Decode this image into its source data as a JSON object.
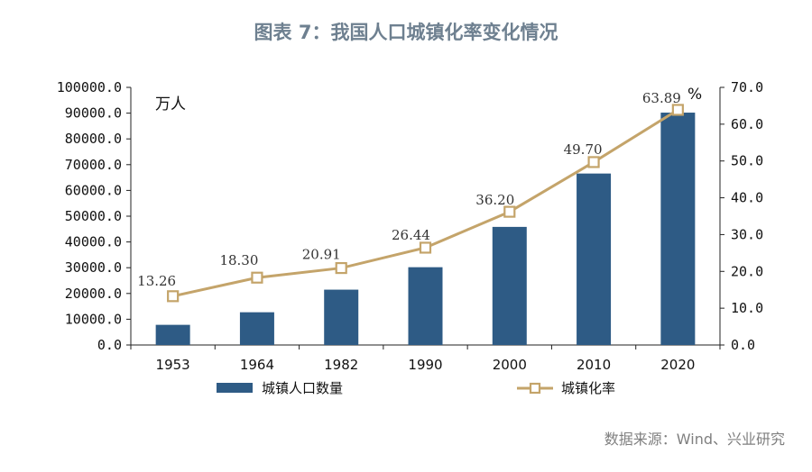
{
  "header": {
    "title": "图表 7：我国人口城镇化率变化情况"
  },
  "footer": {
    "source": "数据来源：Wind、兴业研究"
  },
  "colors": {
    "bar": "#2e5b85",
    "line": "#c4a46a",
    "axis": "#222222"
  },
  "chart_data": {
    "type": "bar",
    "title": "图表 7：我国人口城镇化率变化情况",
    "categories": [
      "1953",
      "1964",
      "1982",
      "1990",
      "2000",
      "2010",
      "2020"
    ],
    "series": [
      {
        "name": "城镇人口数量",
        "type": "bar",
        "axis": "left",
        "values": [
          7826,
          12710,
          21480,
          30195,
          45844,
          66558,
          90199
        ]
      },
      {
        "name": "城镇化率",
        "type": "line",
        "axis": "right",
        "values": [
          13.26,
          18.3,
          20.91,
          26.44,
          36.2,
          49.7,
          63.89
        ],
        "labels": [
          "13.26",
          "18.30",
          "20.91",
          "26.44",
          "36.20",
          "49.70",
          "63.89"
        ]
      }
    ],
    "left_axis": {
      "unit": "万人",
      "ylim": [
        0,
        100000
      ],
      "ticks": [
        "0.0",
        "10000.0",
        "20000.0",
        "30000.0",
        "40000.0",
        "50000.0",
        "60000.0",
        "70000.0",
        "80000.0",
        "90000.0",
        "100000.0"
      ]
    },
    "right_axis": {
      "unit": "%",
      "ylim": [
        0,
        70
      ],
      "ticks": [
        "0.0",
        "10.0",
        "20.0",
        "30.0",
        "40.0",
        "50.0",
        "60.0",
        "70.0"
      ]
    },
    "legend": {
      "position": "bottom",
      "items": [
        "城镇人口数量",
        "城镇化率"
      ]
    },
    "grid": false
  }
}
